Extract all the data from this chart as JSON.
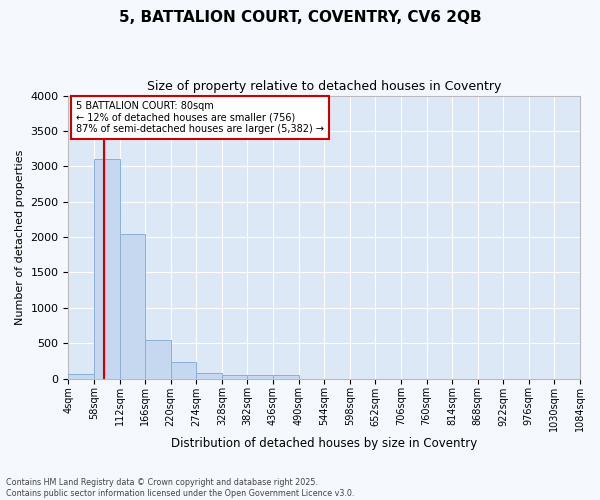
{
  "title": "5, BATTALION COURT, COVENTRY, CV6 2QB",
  "subtitle": "Size of property relative to detached houses in Coventry",
  "xlabel": "Distribution of detached houses by size in Coventry",
  "ylabel": "Number of detached properties",
  "bar_color": "#c5d8f0",
  "bar_edge_color": "#8ab0d8",
  "background_color": "#dce8f5",
  "grid_color": "#ffffff",
  "annotation_box_color": "#cc0000",
  "vline_color": "#cc0000",
  "property_size": 80,
  "property_label": "5 BATTALION COURT: 80sqm",
  "pct_smaller": "12% of detached houses are smaller (756)",
  "pct_larger": "87% of semi-detached houses are larger (5,382)",
  "bins": [
    4,
    58,
    112,
    166,
    220,
    274,
    328,
    382,
    436,
    490,
    544,
    598,
    652,
    706,
    760,
    814,
    868,
    922,
    976,
    1030,
    1084
  ],
  "bin_labels": [
    "4sqm",
    "58sqm",
    "112sqm",
    "166sqm",
    "220sqm",
    "274sqm",
    "328sqm",
    "382sqm",
    "436sqm",
    "490sqm",
    "544sqm",
    "598sqm",
    "652sqm",
    "706sqm",
    "760sqm",
    "814sqm",
    "868sqm",
    "922sqm",
    "976sqm",
    "1030sqm",
    "1084sqm"
  ],
  "counts": [
    65,
    3100,
    2050,
    540,
    230,
    80,
    55,
    50,
    45,
    0,
    0,
    0,
    0,
    0,
    0,
    0,
    0,
    0,
    0,
    0
  ],
  "ylim": [
    0,
    4000
  ],
  "yticks": [
    0,
    500,
    1000,
    1500,
    2000,
    2500,
    3000,
    3500,
    4000
  ],
  "fig_bg": "#f5f8fd",
  "footer": "Contains HM Land Registry data © Crown copyright and database right 2025.\nContains public sector information licensed under the Open Government Licence v3.0."
}
